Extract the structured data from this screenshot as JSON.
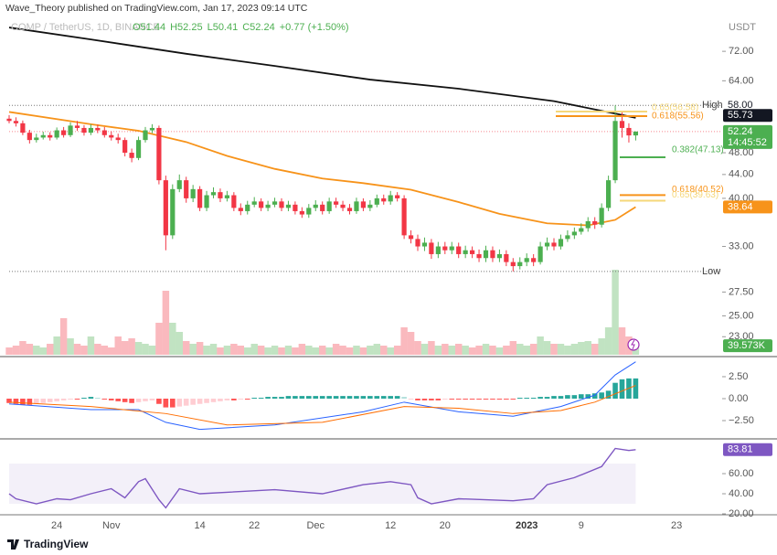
{
  "header": {
    "publisher": "Wave_Theory published on TradingView.com, Jan 17, 2023 09:14 UTC",
    "symbol": "COMP / TetherUS, 1D, BINANCE",
    "ohlc": [
      "O51.44",
      "H52.25",
      "L50.41",
      "C52.24",
      "+0.77 (+1.50%)"
    ]
  },
  "footer": "TradingView",
  "chart_data": [
    {
      "type": "candlestick",
      "unit": "USDT",
      "log": true,
      "up_color": "#4caf50",
      "down_color": "#f23645",
      "ylim": [
        21.4,
        88.4
      ],
      "yticks": [
        {
          "value": 72,
          "label": "72.00"
        },
        {
          "value": 64,
          "label": "64.00"
        },
        {
          "value": 48,
          "label": "48.00"
        },
        {
          "value": 44,
          "label": "44.00"
        },
        {
          "value": 40,
          "label": "40.00"
        },
        {
          "value": 33,
          "label": "33.00"
        },
        {
          "value": 27.5,
          "label": "27.50"
        },
        {
          "value": 25,
          "label": "25.00"
        },
        {
          "value": 23,
          "label": "23.00"
        }
      ],
      "categories": [
        null,
        null,
        null,
        null,
        null,
        null,
        null,
        "24",
        null,
        null,
        null,
        null,
        null,
        null,
        null,
        "Nov",
        null,
        null,
        null,
        null,
        null,
        null,
        null,
        null,
        null,
        null,
        null,
        null,
        "14",
        null,
        null,
        null,
        null,
        null,
        null,
        null,
        "22",
        null,
        null,
        null,
        null,
        null,
        null,
        null,
        null,
        "Dec",
        null,
        null,
        null,
        null,
        null,
        null,
        null,
        null,
        null,
        null,
        "12",
        null,
        null,
        null,
        null,
        null,
        null,
        null,
        "20",
        null,
        null,
        null,
        null,
        null,
        null,
        null,
        null,
        null,
        null,
        null,
        "2023",
        null,
        null,
        null,
        null,
        null,
        null,
        null,
        "9",
        null,
        null,
        null,
        null,
        null,
        null,
        null,
        null,
        null,
        null,
        null,
        null,
        null,
        "23",
        null
      ],
      "open": [
        55.0,
        54.5,
        54.0,
        52.0,
        50.5,
        51.0,
        51.5,
        51.0,
        52.5,
        51.5,
        53.5,
        53.0,
        52.0,
        53.0,
        52.5,
        51.5,
        51.0,
        50.5,
        48.0,
        47.0,
        50.5,
        52.5,
        53.0,
        43.0,
        34.5,
        41.5,
        43.0,
        40.0,
        41.5,
        38.5,
        40.5,
        41.0,
        40.0,
        40.5,
        38.5,
        38.0,
        39.0,
        39.5,
        38.5,
        39.0,
        39.5,
        38.5,
        39.0,
        38.0,
        37.5,
        38.5,
        39.0,
        38.0,
        39.5,
        39.0,
        38.5,
        38.0,
        39.5,
        38.5,
        39.0,
        40.0,
        39.5,
        40.5,
        40.0,
        34.5,
        34.0,
        33.0,
        33.5,
        32.0,
        33.0,
        32.5,
        33.0,
        32.0,
        32.5,
        32.0,
        31.5,
        32.5,
        31.5,
        32.0,
        31.0,
        30.5,
        31.0,
        31.5,
        31.0,
        33.0,
        33.5,
        33.0,
        34.0,
        34.5,
        35.0,
        35.5,
        36.5,
        36.0,
        38.5,
        43.0,
        54.5,
        53.0,
        51.44,
        null,
        null,
        null,
        null,
        null,
        null,
        null
      ],
      "high": [
        55.8,
        55.3,
        54.6,
        52.6,
        51.8,
        52.2,
        52.1,
        53.1,
        53.2,
        54.2,
        54.5,
        53.6,
        53.8,
        53.7,
        53.2,
        52.3,
        51.8,
        51.0,
        48.8,
        51.2,
        53.2,
        53.8,
        53.5,
        43.8,
        42.3,
        44.0,
        43.6,
        42.2,
        42.0,
        41.2,
        41.8,
        41.6,
        41.2,
        41.0,
        39.2,
        39.6,
        40.2,
        40.0,
        39.6,
        40.1,
        40.0,
        39.6,
        39.5,
        38.6,
        39.1,
        39.7,
        39.5,
        40.1,
        40.1,
        39.6,
        39.1,
        40.1,
        40.0,
        39.7,
        40.6,
        40.6,
        41.2,
        41.0,
        40.5,
        35.2,
        34.6,
        34.2,
        34.0,
        33.6,
        33.6,
        33.6,
        33.5,
        33.1,
        33.0,
        32.6,
        33.1,
        33.0,
        32.6,
        32.5,
        31.5,
        31.6,
        32.1,
        32.0,
        33.6,
        34.2,
        34.1,
        34.6,
        35.2,
        35.6,
        36.2,
        37.1,
        37.1,
        39.2,
        43.8,
        58.0,
        56.5,
        54.0,
        52.25,
        null,
        null,
        null,
        null,
        null,
        null,
        null
      ],
      "low": [
        54.0,
        53.3,
        51.5,
        49.8,
        50.0,
        50.6,
        50.4,
        50.6,
        51.0,
        51.1,
        52.4,
        51.4,
        51.5,
        51.9,
        51.0,
        50.4,
        49.8,
        47.3,
        46.2,
        46.6,
        50.0,
        51.9,
        42.3,
        32.5,
        34.0,
        41.0,
        39.3,
        39.4,
        38.0,
        38.0,
        40.0,
        39.4,
        39.5,
        38.0,
        37.4,
        37.5,
        38.6,
        38.0,
        38.0,
        38.6,
        38.0,
        38.0,
        37.5,
        37.0,
        37.0,
        38.0,
        37.5,
        37.6,
        38.5,
        38.0,
        37.5,
        37.6,
        38.0,
        38.0,
        38.6,
        39.0,
        39.0,
        39.5,
        34.0,
        33.4,
        32.4,
        32.4,
        31.4,
        31.5,
        32.0,
        32.0,
        31.5,
        31.5,
        31.5,
        31.0,
        31.0,
        31.0,
        31.0,
        30.5,
        29.86,
        30.1,
        30.5,
        30.5,
        30.7,
        32.5,
        32.5,
        32.6,
        33.6,
        34.0,
        34.6,
        35.0,
        35.4,
        35.6,
        38.0,
        42.5,
        51.0,
        50.0,
        50.41,
        null,
        null,
        null,
        null,
        null,
        null,
        null
      ],
      "close": [
        54.5,
        54.0,
        52.0,
        50.5,
        51.0,
        51.5,
        51.0,
        52.5,
        51.5,
        53.5,
        53.0,
        52.0,
        53.0,
        52.5,
        51.5,
        51.0,
        50.5,
        48.0,
        47.0,
        50.5,
        52.5,
        53.0,
        43.0,
        34.5,
        41.5,
        43.0,
        40.0,
        41.5,
        38.5,
        40.5,
        41.0,
        40.0,
        40.5,
        38.5,
        38.0,
        39.0,
        39.5,
        38.5,
        39.0,
        39.5,
        38.5,
        39.0,
        38.0,
        37.5,
        38.5,
        39.0,
        38.0,
        39.5,
        39.0,
        38.5,
        38.0,
        39.5,
        38.5,
        39.0,
        40.0,
        39.5,
        40.5,
        40.0,
        34.5,
        34.0,
        33.0,
        33.5,
        32.0,
        33.0,
        32.5,
        33.0,
        32.0,
        32.5,
        32.0,
        31.5,
        32.5,
        31.5,
        32.0,
        31.0,
        30.5,
        31.0,
        31.5,
        31.0,
        33.0,
        33.5,
        33.0,
        34.0,
        34.5,
        35.0,
        35.5,
        36.5,
        36.0,
        38.5,
        43.0,
        54.5,
        53.0,
        51.44,
        52.24,
        null,
        null,
        null,
        null,
        null,
        null,
        null
      ],
      "countdown": "14:45:52",
      "volume": [
        32000,
        40000,
        60000,
        48000,
        40000,
        32000,
        48000,
        80000,
        160000,
        72000,
        48000,
        40000,
        80000,
        48000,
        40000,
        32000,
        80000,
        60000,
        72000,
        56000,
        48000,
        40000,
        140000,
        280000,
        140000,
        100000,
        60000,
        48000,
        56000,
        40000,
        48000,
        32000,
        40000,
        48000,
        40000,
        32000,
        48000,
        40000,
        32000,
        40000,
        32000,
        40000,
        32000,
        48000,
        40000,
        32000,
        40000,
        32000,
        48000,
        40000,
        32000,
        40000,
        32000,
        40000,
        48000,
        40000,
        32000,
        40000,
        120000,
        100000,
        60000,
        48000,
        60000,
        40000,
        48000,
        40000,
        48000,
        40000,
        32000,
        40000,
        48000,
        40000,
        32000,
        40000,
        60000,
        48000,
        40000,
        48000,
        80000,
        60000,
        48000,
        48000,
        40000,
        48000,
        56000,
        60000,
        48000,
        72000,
        120000,
        372000,
        120000,
        80000,
        39573,
        null,
        null,
        null,
        null,
        null,
        null,
        null
      ],
      "volume_label": {
        "value": 39573,
        "label": "39.573K"
      },
      "moving_averages": [
        {
          "color": "#111111",
          "x": [
            0,
            12,
            26,
            39,
            53,
            66,
            80,
            92
          ],
          "values": [
            79.2,
            75.5,
            71.3,
            67.9,
            64.3,
            62.0,
            59.0,
            55.2
          ]
        },
        {
          "color": "#f7931a",
          "x": [
            0,
            12,
            19,
            26,
            32,
            39,
            46,
            52,
            59,
            66,
            72,
            79,
            85,
            89,
            92
          ],
          "values": [
            56.5,
            53.8,
            52.4,
            50.1,
            47.4,
            45.0,
            43.3,
            42.5,
            41.4,
            39.4,
            37.6,
            36.2,
            35.9,
            36.7,
            38.64
          ]
        }
      ],
      "price_labels": [
        {
          "title": "High",
          "value": 58,
          "label": "58.00"
        },
        {
          "value": 55.73
        },
        {
          "title": "Low",
          "value": 29.86
        }
      ],
      "fib_levels": [
        {
          "value": 56.58,
          "label": "0.65(56.58)",
          "color": "#f5d77a"
        },
        {
          "value": 55.56,
          "label": "0.618(55.56)",
          "color": "#f7931a"
        },
        {
          "value": 47.13,
          "label": "0.382(47.13)",
          "color": "#4caf50"
        },
        {
          "value": 40.52,
          "label": "0.618(40.52)",
          "color": "#f7931a"
        },
        {
          "value": 39.63,
          "label": "0.65(39.63)",
          "color": "#f5d77a"
        }
      ]
    },
    {
      "type": "macd",
      "ylim": [
        -4.375,
        4.58
      ],
      "yticks": [
        {
          "value": 2.5,
          "label": "2.50"
        },
        {
          "value": 0,
          "label": "0.00"
        },
        {
          "value": -2.5,
          "label": "−2.50"
        }
      ],
      "histogram": [
        -0.5,
        -0.6,
        -0.7,
        -0.7,
        -0.6,
        -0.5,
        -0.4,
        -0.3,
        -0.2,
        -0.1,
        -0.1,
        0.1,
        0.2,
        0.1,
        -0.1,
        -0.2,
        -0.3,
        -0.4,
        -0.5,
        -0.4,
        -0.3,
        -0.2,
        -0.6,
        -1.0,
        -1.0,
        -0.9,
        -0.8,
        -0.7,
        -0.6,
        -0.5,
        -0.4,
        -0.3,
        -0.2,
        -0.2,
        -0.1,
        -0.1,
        0.1,
        0.1,
        0.2,
        0.2,
        0.2,
        0.3,
        0.3,
        0.3,
        0.3,
        0.3,
        0.3,
        0.3,
        0.3,
        0.3,
        0.3,
        0.3,
        0.3,
        0.3,
        0.3,
        0.3,
        0.3,
        0.3,
        0.2,
        -0.1,
        -0.2,
        -0.2,
        -0.2,
        -0.2,
        -0.1,
        -0.1,
        -0.1,
        -0.1,
        -0.1,
        -0.1,
        -0.1,
        -0.1,
        -0.1,
        -0.1,
        -0.1,
        0.1,
        0.1,
        0.1,
        0.2,
        0.2,
        0.3,
        0.3,
        0.4,
        0.4,
        0.5,
        0.5,
        0.6,
        0.7,
        0.9,
        1.8,
        2.2,
        2.3,
        2.3
      ],
      "series": [
        {
          "color": "#2962ff",
          "x": [
            0,
            12,
            19,
            23,
            28,
            39,
            52,
            58,
            66,
            74,
            81,
            86,
            89,
            92
          ],
          "values": [
            -0.6,
            -1.25,
            -1.25,
            -2.7,
            -3.5,
            -3.0,
            -1.5,
            -0.4,
            -1.5,
            -2.0,
            -0.9,
            0.4,
            2.7,
            4.2
          ]
        },
        {
          "color": "#ff6d00",
          "x": [
            0,
            12,
            23,
            32,
            46,
            58,
            66,
            74,
            81,
            86,
            92
          ],
          "values": [
            -0.4,
            -0.9,
            -1.7,
            -3.0,
            -2.7,
            -0.9,
            -1.1,
            -1.7,
            -1.35,
            -0.4,
            1.5
          ]
        }
      ]
    },
    {
      "type": "rsi",
      "color": "#7e57c2",
      "ylim": [
        19.1,
        91.8
      ],
      "yticks": [
        {
          "value": 60,
          "label": "60.00"
        },
        {
          "value": 40,
          "label": "40.00"
        },
        {
          "value": 20,
          "label": "20.00"
        }
      ],
      "band": [
        30,
        70
      ],
      "x": [
        0,
        1,
        4,
        7,
        9,
        12,
        15,
        17,
        19,
        20,
        22,
        23,
        25,
        28,
        39,
        46,
        52,
        56,
        59,
        60,
        62,
        66,
        74,
        77,
        79,
        83,
        87,
        89,
        91,
        92
      ],
      "values": [
        40,
        35,
        30,
        35,
        34,
        40,
        45,
        36,
        52,
        55,
        34,
        26,
        45,
        40,
        44,
        40,
        49,
        52,
        49,
        36,
        30,
        35,
        33,
        35,
        49,
        56,
        67,
        85,
        83,
        83.81
      ]
    }
  ]
}
